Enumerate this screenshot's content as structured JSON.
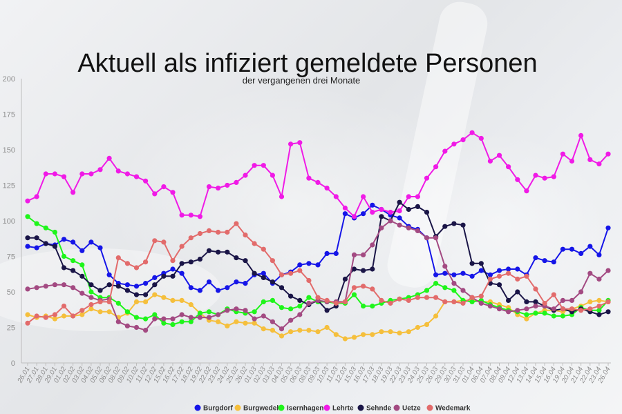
{
  "chart_data": {
    "type": "line",
    "title": "Aktuell als infiziert gemeldete Personen",
    "subtitle": "der vergangenen drei Monate",
    "xlabel": "",
    "ylabel": "",
    "ylim": [
      0,
      200
    ],
    "yticks": [
      0,
      25,
      50,
      75,
      100,
      125,
      150,
      175,
      200
    ],
    "grid": false,
    "legend_position": "bottom",
    "x": [
      "26.01",
      "27.01",
      "28.01",
      "29.01",
      "01.02",
      "02.02",
      "03.02",
      "04.02",
      "05.02",
      "06.02",
      "08.02",
      "09.02",
      "10.02",
      "11.02",
      "12.02",
      "15.02",
      "16.02",
      "17.02",
      "18.02",
      "19.02",
      "22.02",
      "23.02",
      "24.02",
      "25.02",
      "26.02",
      "01.03",
      "02.03",
      "03.03",
      "04.03",
      "05.03",
      "06.03",
      "08.03",
      "09.03",
      "10.03",
      "11.03",
      "12.03",
      "15.03",
      "16.03",
      "17.03",
      "18.03",
      "19.03",
      "22.03",
      "23.03",
      "24.03",
      "25.03",
      "26.03",
      "29.03",
      "30.03",
      "31.03",
      "01.04",
      "06.04",
      "07.04",
      "08.04",
      "09.04",
      "12.04",
      "13.04",
      "14.04",
      "15.04",
      "16.04",
      "19.04",
      "20.04",
      "21.04",
      "22.04",
      "23.04",
      "26.04"
    ],
    "series": [
      {
        "name": "Burgdorf",
        "color": "#1515e8",
        "values": [
          82,
          81,
          84,
          83,
          87,
          85,
          79,
          85,
          81,
          62,
          56,
          55,
          54,
          56,
          60,
          63,
          66,
          63,
          53,
          51,
          57,
          51,
          53,
          57,
          56,
          62,
          63,
          56,
          62,
          64,
          69,
          70,
          69,
          77,
          77,
          105,
          102,
          105,
          111,
          108,
          104,
          102,
          96,
          94,
          88,
          62,
          63,
          62,
          63,
          61,
          65,
          62,
          65,
          66,
          66,
          62,
          74,
          72,
          71,
          80,
          80,
          77,
          82,
          76,
          95
        ]
      },
      {
        "name": "Burgwedel",
        "color": "#f5bf3c",
        "values": [
          34,
          32,
          33,
          31,
          33,
          33,
          34,
          38,
          36,
          36,
          32,
          35,
          43,
          43,
          48,
          46,
          44,
          44,
          41,
          35,
          30,
          29,
          26,
          29,
          28,
          28,
          24,
          23,
          19,
          22,
          23,
          23,
          22,
          25,
          20,
          17,
          18,
          20,
          20,
          22,
          22,
          21,
          22,
          25,
          27,
          33,
          43,
          43,
          44,
          44,
          43,
          43,
          41,
          39,
          34,
          31,
          35,
          37,
          37,
          36,
          38,
          40,
          43,
          44,
          43
        ]
      },
      {
        "name": "Isernhagen",
        "color": "#1ef51a",
        "values": [
          103,
          98,
          95,
          92,
          75,
          72,
          69,
          50,
          46,
          46,
          42,
          36,
          32,
          31,
          34,
          28,
          27,
          29,
          29,
          35,
          36,
          34,
          38,
          36,
          35,
          36,
          43,
          44,
          39,
          38,
          40,
          46,
          43,
          43,
          42,
          42,
          48,
          40,
          40,
          42,
          44,
          45,
          46,
          48,
          51,
          56,
          53,
          51,
          44,
          43,
          44,
          41,
          39,
          37,
          36,
          34,
          35,
          35,
          33,
          33,
          34,
          39,
          37,
          37,
          44
        ]
      },
      {
        "name": "Lehrte",
        "color": "#f01ae6",
        "values": [
          114,
          117,
          133,
          133,
          131,
          120,
          133,
          133,
          136,
          144,
          135,
          133,
          131,
          128,
          119,
          124,
          120,
          104,
          104,
          103,
          124,
          123,
          125,
          127,
          132,
          139,
          139,
          132,
          117,
          154,
          155,
          130,
          127,
          123,
          117,
          109,
          103,
          117,
          106,
          108,
          106,
          107,
          117,
          117,
          130,
          138,
          149,
          154,
          157,
          162,
          158,
          142,
          146,
          138,
          129,
          121,
          132,
          130,
          131,
          147,
          142,
          160,
          143,
          140,
          147
        ]
      },
      {
        "name": "Sehnde",
        "color": "#1a1547",
        "values": [
          88,
          88,
          84,
          82,
          67,
          65,
          61,
          55,
          51,
          55,
          54,
          51,
          48,
          48,
          55,
          61,
          61,
          70,
          71,
          73,
          79,
          78,
          78,
          74,
          72,
          63,
          60,
          57,
          53,
          47,
          44,
          41,
          44,
          37,
          40,
          59,
          66,
          65,
          66,
          103,
          100,
          113,
          108,
          110,
          106,
          89,
          96,
          98,
          97,
          70,
          70,
          56,
          55,
          44,
          50,
          43,
          43,
          40,
          37,
          38,
          36,
          38,
          36,
          34,
          36
        ]
      },
      {
        "name": "Uetze",
        "color": "#a34a82",
        "values": [
          52,
          53,
          54,
          55,
          55,
          53,
          49,
          46,
          44,
          45,
          29,
          26,
          25,
          23,
          31,
          31,
          31,
          34,
          32,
          32,
          32,
          34,
          37,
          38,
          37,
          31,
          33,
          29,
          24,
          30,
          34,
          42,
          44,
          43,
          43,
          43,
          76,
          76,
          83,
          95,
          100,
          97,
          95,
          93,
          88,
          88,
          68,
          56,
          51,
          46,
          42,
          40,
          38,
          36,
          37,
          38,
          40,
          40,
          38,
          44,
          44,
          50,
          63,
          59,
          65
        ]
      },
      {
        "name": "Wedemark",
        "color": "#e26b6b",
        "values": [
          28,
          33,
          32,
          34,
          40,
          33,
          37,
          41,
          43,
          43,
          74,
          70,
          67,
          71,
          86,
          85,
          72,
          82,
          88,
          91,
          93,
          92,
          92,
          98,
          90,
          84,
          80,
          72,
          62,
          63,
          65,
          58,
          46,
          44,
          42,
          43,
          53,
          54,
          52,
          44,
          42,
          45,
          44,
          46,
          46,
          46,
          43,
          43,
          42,
          46,
          47,
          59,
          61,
          63,
          59,
          61,
          52,
          42,
          48,
          38,
          38,
          37,
          38,
          40,
          43
        ]
      }
    ]
  }
}
